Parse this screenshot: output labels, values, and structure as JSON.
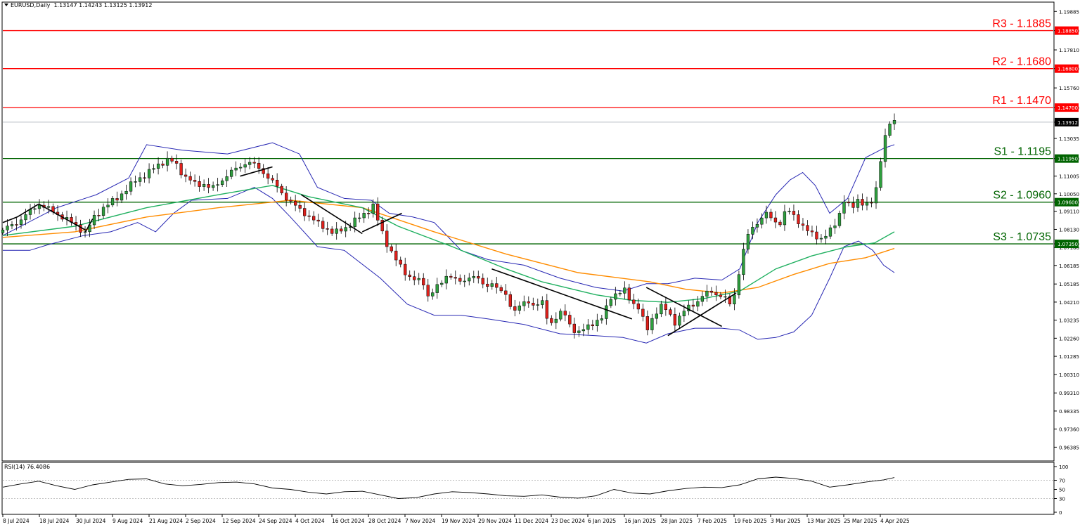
{
  "header": {
    "symbol": "EURUSD,Daily",
    "ohlc": "1.13147 1.14243 1.13125 1.13912"
  },
  "rsi_panel": {
    "label": "RSI(14) 76.4086"
  },
  "chart_data": {
    "type": "candlestick",
    "title": "EURUSD,Daily",
    "ylim": [
      0.9568,
      1.2035
    ],
    "y_ticks": [
      "1.19885",
      "1.18850",
      "1.17810",
      "1.16800",
      "1.15760",
      "1.14700",
      "1.13912",
      "1.13035",
      "1.11950",
      "1.11005",
      "1.10050",
      "1.09600",
      "1.09110",
      "1.08130",
      "1.07350",
      "1.07160",
      "1.06185",
      "1.05185",
      "1.04210",
      "1.03235",
      "1.02260",
      "1.01285",
      "1.00310",
      "0.99310",
      "0.98335",
      "0.97360",
      "0.96385"
    ],
    "x_tick_labels": [
      "8 Jul 2024",
      "18 Jul 2024",
      "30 Jul 2024",
      "9 Aug 2024",
      "21 Aug 2024",
      "2 Sep 2024",
      "12 Sep 2024",
      "24 Sep 2024",
      "4 Oct 2024",
      "16 Oct 2024",
      "28 Oct 2024",
      "7 Nov 2024",
      "19 Nov 2024",
      "29 Nov 2024",
      "11 Dec 2024",
      "23 Dec 2024",
      "6 Jan 2025",
      "16 Jan 2025",
      "28 Jan 2025",
      "7 Feb 2025",
      "19 Feb 2025",
      "3 Mar 2025",
      "13 Mar 2025",
      "25 Mar 2025",
      "4 Apr 2025"
    ],
    "last_price": {
      "value": 1.13912,
      "label": "1.13912"
    },
    "levels": [
      {
        "name": "R3",
        "text": "R3 - 1.1885",
        "value": 1.1885,
        "tag": "1.18850",
        "color": "#ff0000"
      },
      {
        "name": "R2",
        "text": "R2 - 1.1680",
        "value": 1.168,
        "tag": "1.16800",
        "color": "#ff0000"
      },
      {
        "name": "R1",
        "text": "R1 - 1.1470",
        "value": 1.147,
        "tag": "1.14700",
        "color": "#ff0000"
      },
      {
        "name": "S1",
        "text": "S1 - 1.1195",
        "value": 1.1195,
        "tag": "1.11950",
        "color": "#006400"
      },
      {
        "name": "S2",
        "text": "S2 - 1.0960",
        "value": 1.096,
        "tag": "1.09600",
        "color": "#006400"
      },
      {
        "name": "S3",
        "text": "S3 - 1.0735",
        "value": 1.0735,
        "tag": "1.07350",
        "color": "#006400"
      }
    ],
    "close_path": [
      [
        0,
        1.081
      ],
      [
        8,
        1.085
      ],
      [
        14,
        1.09
      ],
      [
        20,
        1.095
      ],
      [
        26,
        1.092
      ],
      [
        33,
        1.088
      ],
      [
        40,
        1.084
      ],
      [
        46,
        1.079
      ],
      [
        50,
        1.087
      ],
      [
        56,
        1.093
      ],
      [
        62,
        1.097
      ],
      [
        68,
        1.102
      ],
      [
        74,
        1.108
      ],
      [
        80,
        1.111
      ],
      [
        86,
        1.116
      ],
      [
        92,
        1.119
      ],
      [
        96,
        1.117
      ],
      [
        100,
        1.111
      ],
      [
        104,
        1.108
      ],
      [
        108,
        1.105
      ],
      [
        112,
        1.106
      ],
      [
        116,
        1.103
      ],
      [
        120,
        1.106
      ],
      [
        124,
        1.11
      ],
      [
        128,
        1.113
      ],
      [
        132,
        1.115
      ],
      [
        136,
        1.118
      ],
      [
        140,
        1.116
      ],
      [
        144,
        1.113
      ],
      [
        148,
        1.109
      ],
      [
        152,
        1.105
      ],
      [
        156,
        1.1
      ],
      [
        160,
        1.096
      ],
      [
        164,
        1.093
      ],
      [
        168,
        1.09
      ],
      [
        172,
        1.087
      ],
      [
        176,
        1.084
      ],
      [
        180,
        1.082
      ],
      [
        184,
        1.079
      ],
      [
        188,
        1.081
      ],
      [
        192,
        1.083
      ],
      [
        196,
        1.086
      ],
      [
        200,
        1.089
      ],
      [
        204,
        1.092
      ],
      [
        206,
        1.094
      ],
      [
        210,
        1.082
      ],
      [
        214,
        1.073
      ],
      [
        218,
        1.066
      ],
      [
        222,
        1.06
      ],
      [
        226,
        1.056
      ],
      [
        230,
        1.054
      ],
      [
        234,
        1.052
      ],
      [
        236,
        1.045
      ],
      [
        240,
        1.049
      ],
      [
        244,
        1.052
      ],
      [
        248,
        1.058
      ],
      [
        252,
        1.054
      ],
      [
        256,
        1.052
      ],
      [
        260,
        1.057
      ],
      [
        264,
        1.055
      ],
      [
        268,
        1.05
      ],
      [
        272,
        1.053
      ],
      [
        276,
        1.048
      ],
      [
        280,
        1.046
      ],
      [
        284,
        1.037
      ],
      [
        288,
        1.04
      ],
      [
        292,
        1.043
      ],
      [
        296,
        1.04
      ],
      [
        300,
        1.042
      ],
      [
        304,
        1.03
      ],
      [
        308,
        1.034
      ],
      [
        312,
        1.037
      ],
      [
        316,
        1.029
      ],
      [
        320,
        1.025
      ],
      [
        324,
        1.028
      ],
      [
        328,
        1.031
      ],
      [
        332,
        1.032
      ],
      [
        334,
        1.034
      ],
      [
        338,
        1.045
      ],
      [
        342,
        1.047
      ],
      [
        346,
        1.048
      ],
      [
        350,
        1.042
      ],
      [
        354,
        1.039
      ],
      [
        356,
        1.033
      ],
      [
        358,
        1.026
      ],
      [
        362,
        1.035
      ],
      [
        366,
        1.04
      ],
      [
        370,
        1.037
      ],
      [
        374,
        1.031
      ],
      [
        378,
        1.036
      ],
      [
        382,
        1.04
      ],
      [
        386,
        1.042
      ],
      [
        390,
        1.046
      ],
      [
        394,
        1.048
      ],
      [
        398,
        1.046
      ],
      [
        402,
        1.044
      ],
      [
        405,
        1.04
      ],
      [
        408,
        1.05
      ],
      [
        412,
        1.07
      ],
      [
        416,
        1.082
      ],
      [
        420,
        1.085
      ],
      [
        424,
        1.09
      ],
      [
        428,
        1.087
      ],
      [
        432,
        1.084
      ],
      [
        436,
        1.092
      ],
      [
        440,
        1.089
      ],
      [
        444,
        1.084
      ],
      [
        448,
        1.08
      ],
      [
        452,
        1.078
      ],
      [
        456,
        1.076
      ],
      [
        460,
        1.08
      ],
      [
        464,
        1.086
      ],
      [
        468,
        1.097
      ],
      [
        472,
        1.092
      ],
      [
        476,
        1.098
      ],
      [
        480,
        1.094
      ],
      [
        484,
        1.096
      ],
      [
        486,
        1.104
      ],
      [
        488,
        1.118
      ],
      [
        490,
        1.127
      ],
      [
        492,
        1.136
      ],
      [
        494,
        1.139
      ]
    ],
    "bollinger_upper": [
      [
        0,
        1.078
      ],
      [
        30,
        1.093
      ],
      [
        52,
        1.1
      ],
      [
        70,
        1.109
      ],
      [
        80,
        1.127
      ],
      [
        100,
        1.124
      ],
      [
        125,
        1.122
      ],
      [
        150,
        1.128
      ],
      [
        165,
        1.122
      ],
      [
        175,
        1.104
      ],
      [
        190,
        1.098
      ],
      [
        205,
        1.097
      ],
      [
        215,
        1.09
      ],
      [
        228,
        1.088
      ],
      [
        240,
        1.085
      ],
      [
        255,
        1.07
      ],
      [
        270,
        1.065
      ],
      [
        290,
        1.062
      ],
      [
        310,
        1.055
      ],
      [
        330,
        1.05
      ],
      [
        345,
        1.048
      ],
      [
        358,
        1.052
      ],
      [
        370,
        1.052
      ],
      [
        385,
        1.055
      ],
      [
        400,
        1.054
      ],
      [
        410,
        1.06
      ],
      [
        420,
        1.085
      ],
      [
        430,
        1.1
      ],
      [
        438,
        1.108
      ],
      [
        445,
        1.112
      ],
      [
        452,
        1.105
      ],
      [
        460,
        1.09
      ],
      [
        470,
        1.098
      ],
      [
        480,
        1.12
      ],
      [
        490,
        1.125
      ],
      [
        496,
        1.127
      ]
    ],
    "bollinger_lower": [
      [
        0,
        1.07
      ],
      [
        15,
        1.07
      ],
      [
        25,
        1.073
      ],
      [
        45,
        1.078
      ],
      [
        60,
        1.08
      ],
      [
        75,
        1.085
      ],
      [
        85,
        1.08
      ],
      [
        95,
        1.09
      ],
      [
        105,
        1.097
      ],
      [
        125,
        1.098
      ],
      [
        140,
        1.104
      ],
      [
        150,
        1.098
      ],
      [
        160,
        1.088
      ],
      [
        175,
        1.072
      ],
      [
        190,
        1.07
      ],
      [
        210,
        1.055
      ],
      [
        225,
        1.041
      ],
      [
        240,
        1.035
      ],
      [
        255,
        1.035
      ],
      [
        270,
        1.033
      ],
      [
        290,
        1.03
      ],
      [
        310,
        1.025
      ],
      [
        330,
        1.024
      ],
      [
        345,
        1.023
      ],
      [
        358,
        1.02
      ],
      [
        370,
        1.025
      ],
      [
        385,
        1.028
      ],
      [
        400,
        1.028
      ],
      [
        410,
        1.027
      ],
      [
        420,
        1.022
      ],
      [
        430,
        1.023
      ],
      [
        440,
        1.026
      ],
      [
        450,
        1.035
      ],
      [
        460,
        1.055
      ],
      [
        468,
        1.072
      ],
      [
        476,
        1.075
      ],
      [
        484,
        1.07
      ],
      [
        490,
        1.062
      ],
      [
        496,
        1.058
      ]
    ],
    "ma_green": [
      [
        0,
        1.078
      ],
      [
        40,
        1.083
      ],
      [
        80,
        1.093
      ],
      [
        120,
        1.1
      ],
      [
        150,
        1.105
      ],
      [
        170,
        1.099
      ],
      [
        200,
        1.093
      ],
      [
        220,
        1.083
      ],
      [
        250,
        1.072
      ],
      [
        280,
        1.06
      ],
      [
        300,
        1.053
      ],
      [
        330,
        1.046
      ],
      [
        350,
        1.043
      ],
      [
        370,
        1.042
      ],
      [
        390,
        1.044
      ],
      [
        410,
        1.048
      ],
      [
        430,
        1.06
      ],
      [
        450,
        1.067
      ],
      [
        470,
        1.072
      ],
      [
        485,
        1.074
      ],
      [
        496,
        1.08
      ]
    ],
    "ma_orange": [
      [
        0,
        1.077
      ],
      [
        40,
        1.08
      ],
      [
        80,
        1.088
      ],
      [
        120,
        1.093
      ],
      [
        160,
        1.097
      ],
      [
        200,
        1.093
      ],
      [
        240,
        1.08
      ],
      [
        280,
        1.068
      ],
      [
        320,
        1.058
      ],
      [
        360,
        1.053
      ],
      [
        380,
        1.049
      ],
      [
        400,
        1.047
      ],
      [
        420,
        1.05
      ],
      [
        440,
        1.057
      ],
      [
        460,
        1.063
      ],
      [
        480,
        1.066
      ],
      [
        496,
        1.071
      ]
    ],
    "trendlines": [
      [
        [
          0,
          1.085
        ],
        [
          8,
          1.088
        ],
        [
          20,
          1.095
        ]
      ],
      [
        [
          20,
          1.095
        ],
        [
          46,
          1.081
        ]
      ],
      [
        [
          46,
          1.08
        ],
        [
          50,
          1.087
        ]
      ],
      [
        [
          132,
          1.11
        ],
        [
          150,
          1.115
        ]
      ],
      [
        [
          166,
          1.1
        ],
        [
          200,
          1.079
        ]
      ],
      [
        [
          200,
          1.08
        ],
        [
          222,
          1.09
        ]
      ],
      [
        [
          272,
          1.06
        ],
        [
          350,
          1.033
        ]
      ],
      [
        [
          358,
          1.05
        ],
        [
          400,
          1.029
        ]
      ],
      [
        [
          370,
          1.024
        ],
        [
          408,
          1.047
        ]
      ]
    ],
    "rsi": {
      "name": "RSI(14)",
      "last_value": 76.4086,
      "levels": [
        30,
        70
      ],
      "ticks": [
        "100",
        "70",
        "50",
        "30",
        "0"
      ],
      "series": [
        [
          0,
          55
        ],
        [
          10,
          62
        ],
        [
          20,
          68
        ],
        [
          30,
          58
        ],
        [
          40,
          50
        ],
        [
          50,
          60
        ],
        [
          60,
          66
        ],
        [
          70,
          72
        ],
        [
          80,
          73
        ],
        [
          90,
          62
        ],
        [
          100,
          58
        ],
        [
          110,
          61
        ],
        [
          120,
          65
        ],
        [
          130,
          66
        ],
        [
          140,
          62
        ],
        [
          150,
          53
        ],
        [
          160,
          50
        ],
        [
          170,
          44
        ],
        [
          180,
          40
        ],
        [
          190,
          45
        ],
        [
          200,
          46
        ],
        [
          210,
          38
        ],
        [
          220,
          30
        ],
        [
          230,
          32
        ],
        [
          240,
          40
        ],
        [
          250,
          45
        ],
        [
          260,
          43
        ],
        [
          270,
          40
        ],
        [
          280,
          36
        ],
        [
          290,
          35
        ],
        [
          300,
          38
        ],
        [
          310,
          33
        ],
        [
          320,
          31
        ],
        [
          330,
          36
        ],
        [
          340,
          50
        ],
        [
          350,
          42
        ],
        [
          360,
          40
        ],
        [
          370,
          47
        ],
        [
          380,
          52
        ],
        [
          390,
          55
        ],
        [
          400,
          54
        ],
        [
          410,
          60
        ],
        [
          420,
          73
        ],
        [
          430,
          77
        ],
        [
          440,
          74
        ],
        [
          450,
          68
        ],
        [
          460,
          55
        ],
        [
          470,
          60
        ],
        [
          480,
          66
        ],
        [
          490,
          71
        ],
        [
          496,
          76
        ]
      ]
    }
  }
}
